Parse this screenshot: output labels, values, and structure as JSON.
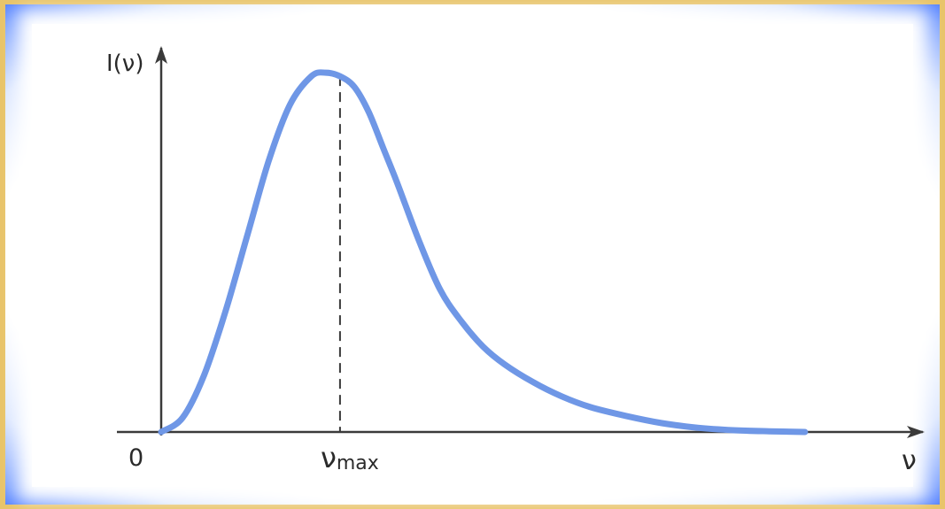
{
  "chart_data": {
    "type": "line",
    "title": "",
    "xlabel": "ν",
    "ylabel": "I(ν)",
    "origin_label": "0",
    "peak_label": "ν",
    "peak_label_sub": "max",
    "xlim": [
      0,
      10.5
    ],
    "ylim": [
      0,
      1.08
    ],
    "grid": false,
    "legend": "none",
    "peak_x": 2.5,
    "line_color": "#6f97e6",
    "axis_color": "#3a3a3a",
    "series": [
      {
        "name": "",
        "x": [
          0,
          0.3,
          0.6,
          0.9,
          1.2,
          1.5,
          1.8,
          2.1,
          2.3,
          2.5,
          2.7,
          2.9,
          3.1,
          3.3,
          3.6,
          3.9,
          4.2,
          4.5,
          4.8,
          5.2,
          5.6,
          6.0,
          6.5,
          7.0,
          7.5,
          8.0,
          8.5,
          9.0
        ],
        "y": [
          0,
          0.04,
          0.16,
          0.34,
          0.55,
          0.76,
          0.92,
          1.0,
          1.01,
          1.0,
          0.97,
          0.9,
          0.8,
          0.7,
          0.54,
          0.4,
          0.31,
          0.24,
          0.19,
          0.14,
          0.1,
          0.07,
          0.045,
          0.025,
          0.012,
          0.005,
          0.002,
          0
        ]
      }
    ]
  }
}
